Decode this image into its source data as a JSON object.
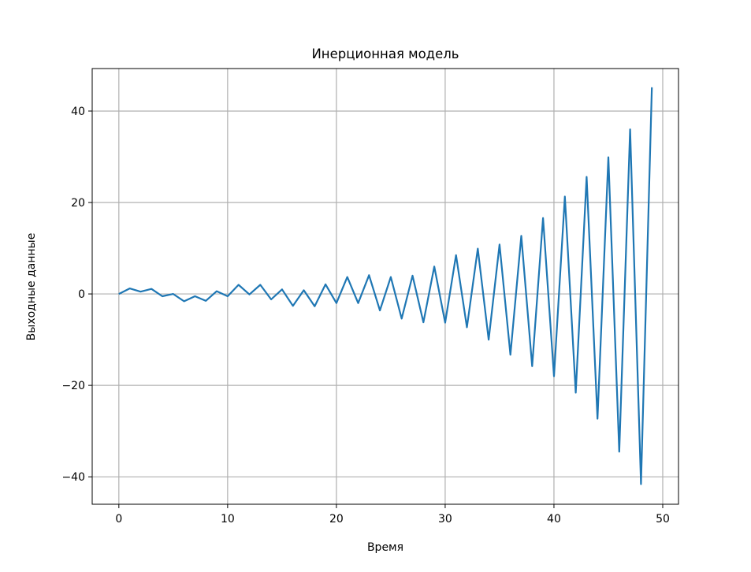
{
  "chart_data": {
    "type": "line",
    "title": "Инерционная модель",
    "xlabel": "Время",
    "ylabel": "Выходные данные",
    "xlim": [
      -2.45,
      51.45
    ],
    "ylim": [
      -46.0,
      49.3
    ],
    "xticks": [
      0,
      10,
      20,
      30,
      40,
      50
    ],
    "yticks": [
      -40,
      -20,
      0,
      20,
      40
    ],
    "xtick_labels": [
      "0",
      "10",
      "20",
      "30",
      "40",
      "50"
    ],
    "ytick_labels": [
      "−40",
      "−20",
      "0",
      "20",
      "40"
    ],
    "grid": true,
    "line_color": "#1f77b4",
    "grid_color": "#b0b0b0",
    "x": [
      0,
      1,
      2,
      3,
      4,
      5,
      6,
      7,
      8,
      9,
      10,
      11,
      12,
      13,
      14,
      15,
      16,
      17,
      18,
      19,
      20,
      21,
      22,
      23,
      24,
      25,
      26,
      27,
      28,
      29,
      30,
      31,
      32,
      33,
      34,
      35,
      36,
      37,
      38,
      39,
      40,
      41,
      42,
      43,
      44,
      45,
      46,
      47,
      48,
      49
    ],
    "y": [
      0,
      1.2,
      0.5,
      1.1,
      -0.5,
      0,
      -1.6,
      -0.5,
      -1.5,
      0.6,
      -0.5,
      2.0,
      -0.1,
      2.0,
      -1.2,
      1.0,
      -2.6,
      0.8,
      -2.7,
      2.1,
      -2.0,
      3.7,
      -2.0,
      4.1,
      -3.6,
      3.7,
      -5.4,
      4.0,
      -6.2,
      6.0,
      -6.3,
      8.5,
      -7.3,
      9.9,
      -10.0,
      10.8,
      -13.3,
      12.7,
      -15.8,
      16.6,
      -18.0,
      21.3,
      -21.6,
      25.6,
      -27.3,
      29.9,
      -34.5,
      36.0,
      -41.6,
      45.2
    ]
  }
}
